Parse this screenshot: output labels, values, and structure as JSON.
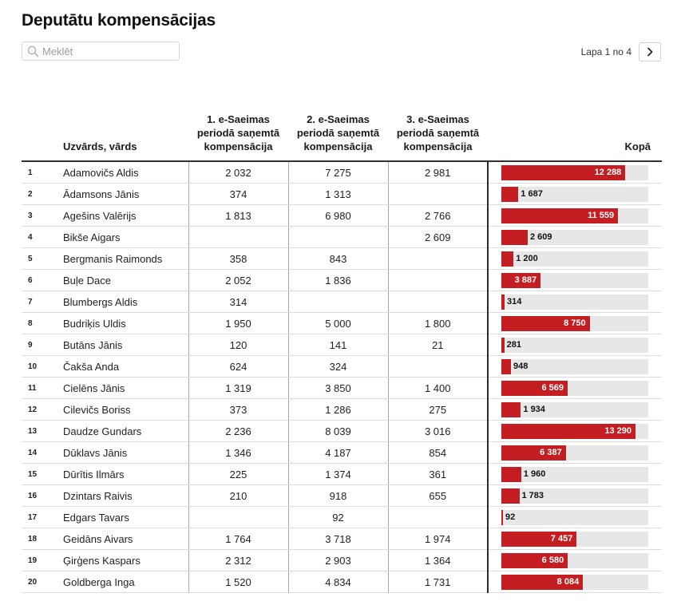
{
  "page_title": "Deputātu kompensācijas",
  "search": {
    "placeholder": "Meklēt",
    "value": ""
  },
  "pagination": {
    "label": "Lapa 1 no 4"
  },
  "colors": {
    "bar": "#c41e22",
    "track": "#e7e7e7"
  },
  "table": {
    "headers": {
      "name": "Uzvārds, vārds",
      "period1": "1. e-Saeimas periodā saņemtā kompensācija",
      "period2": "2. e-Saeimas periodā saņemtā kompensācija",
      "period3": "3. e-Saeimas periodā saņemtā kompensācija",
      "total": "Kopā"
    },
    "max_total": 13290,
    "rows": [
      {
        "rank": "1",
        "name": "Adamovičs Aldis",
        "p1": "2 032",
        "p2": "7 275",
        "p3": "2 981",
        "total_label": "12 288",
        "total": 12288
      },
      {
        "rank": "2",
        "name": "Ādamsons Jānis",
        "p1": "374",
        "p2": "1 313",
        "p3": "",
        "total_label": "1 687",
        "total": 1687
      },
      {
        "rank": "3",
        "name": "Agešins Valērijs",
        "p1": "1 813",
        "p2": "6 980",
        "p3": "2 766",
        "total_label": "11 559",
        "total": 11559
      },
      {
        "rank": "4",
        "name": "Bikše Aigars",
        "p1": "",
        "p2": "",
        "p3": "2 609",
        "total_label": "2 609",
        "total": 2609
      },
      {
        "rank": "5",
        "name": "Bergmanis Raimonds",
        "p1": "358",
        "p2": "843",
        "p3": "",
        "total_label": "1 200",
        "total": 1200
      },
      {
        "rank": "6",
        "name": "Buļe Dace",
        "p1": "2 052",
        "p2": "1 836",
        "p3": "",
        "total_label": "3 887",
        "total": 3887
      },
      {
        "rank": "7",
        "name": "Blumbergs Aldis",
        "p1": "314",
        "p2": "",
        "p3": "",
        "total_label": "314",
        "total": 314
      },
      {
        "rank": "8",
        "name": "Budriķis Uldis",
        "p1": "1 950",
        "p2": "5 000",
        "p3": "1 800",
        "total_label": "8 750",
        "total": 8750
      },
      {
        "rank": "9",
        "name": "Butāns Jānis",
        "p1": "120",
        "p2": "141",
        "p3": "21",
        "total_label": "281",
        "total": 281
      },
      {
        "rank": "10",
        "name": "Čakša Anda",
        "p1": "624",
        "p2": "324",
        "p3": "",
        "total_label": "948",
        "total": 948
      },
      {
        "rank": "11",
        "name": "Cielēns Jānis",
        "p1": "1 319",
        "p2": "3 850",
        "p3": "1 400",
        "total_label": "6 569",
        "total": 6569
      },
      {
        "rank": "12",
        "name": "Cilevičs Boriss",
        "p1": "373",
        "p2": "1 286",
        "p3": "275",
        "total_label": "1 934",
        "total": 1934
      },
      {
        "rank": "13",
        "name": "Daudze Gundars",
        "p1": "2 236",
        "p2": "8 039",
        "p3": "3 016",
        "total_label": "13 290",
        "total": 13290
      },
      {
        "rank": "14",
        "name": "Dūklavs Jānis",
        "p1": "1 346",
        "p2": "4 187",
        "p3": "854",
        "total_label": "6 387",
        "total": 6387
      },
      {
        "rank": "15",
        "name": "Dūrītis Ilmārs",
        "p1": "225",
        "p2": "1 374",
        "p3": "361",
        "total_label": "1 960",
        "total": 1960
      },
      {
        "rank": "16",
        "name": "Dzintars Raivis",
        "p1": "210",
        "p2": "918",
        "p3": "655",
        "total_label": "1 783",
        "total": 1783
      },
      {
        "rank": "17",
        "name": "Edgars Tavars",
        "p1": "",
        "p2": "92",
        "p3": "",
        "total_label": "92",
        "total": 92
      },
      {
        "rank": "18",
        "name": "Geidāns Aivars",
        "p1": "1 764",
        "p2": "3 718",
        "p3": "1 974",
        "total_label": "7 457",
        "total": 7457
      },
      {
        "rank": "19",
        "name": "Ģirģens Kaspars",
        "p1": "2 312",
        "p2": "2 903",
        "p3": "1 364",
        "total_label": "6 580",
        "total": 6580
      },
      {
        "rank": "20",
        "name": "Goldberga Inga",
        "p1": "1 520",
        "p2": "4 834",
        "p3": "1 731",
        "total_label": "8 084",
        "total": 8084
      }
    ]
  }
}
